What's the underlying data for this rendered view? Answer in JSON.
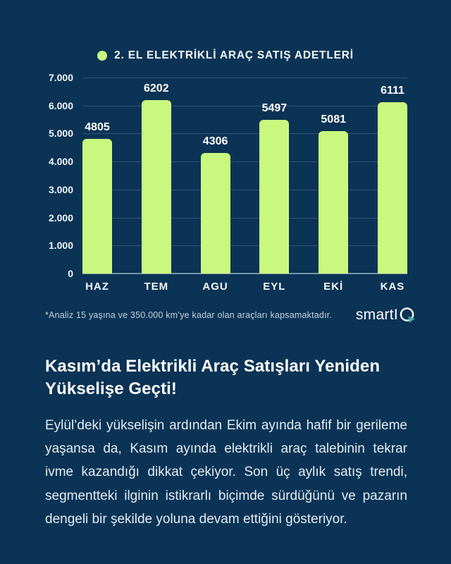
{
  "chart_data": {
    "type": "bar",
    "title": "2. EL ELEKTRİKLİ ARAÇ SATIŞ ADETLERİ",
    "categories": [
      "HAZ",
      "TEM",
      "AGU",
      "EYL",
      "EKİ",
      "KAS"
    ],
    "values": [
      4805,
      6202,
      4306,
      5497,
      5081,
      6111
    ],
    "value_labels": [
      "4805",
      "6202",
      "4306",
      "5497",
      "5081",
      "6111"
    ],
    "xlabel": "",
    "ylabel": "",
    "ylim": [
      0,
      7000
    ],
    "y_ticks": [
      "7.000",
      "6.000",
      "5.000",
      "4.000",
      "3.000",
      "2.000",
      "1.000",
      "0"
    ],
    "grid": true,
    "legend_position": "top-center",
    "bar_color": "#c9f87e",
    "background_color": "#0b3355"
  },
  "footer": {
    "note": "*Analiz 15 yaşına ve 350.000 km’ye kadar olan araçları kapsamaktadır.",
    "logo_text": "smartI",
    "logo_arrow_color": "#45b0a5"
  },
  "article": {
    "heading": "Kasım’da Elektrikli Araç Satışları Yeniden Yükselişe Geçti!",
    "body": "Eylül’deki yükselişin ardından Ekim ayında hafif bir gerileme yaşansa da, Kasım ayında elektrikli araç talebinin tekrar ivme kazandığı dikkat çekiyor. Son üç aylık satış trendi, segmentteki ilginin istikrarlı biçimde sürdüğünü ve pazarın dengeli bir şekilde yoluna devam ettiğini gösteriyor."
  }
}
